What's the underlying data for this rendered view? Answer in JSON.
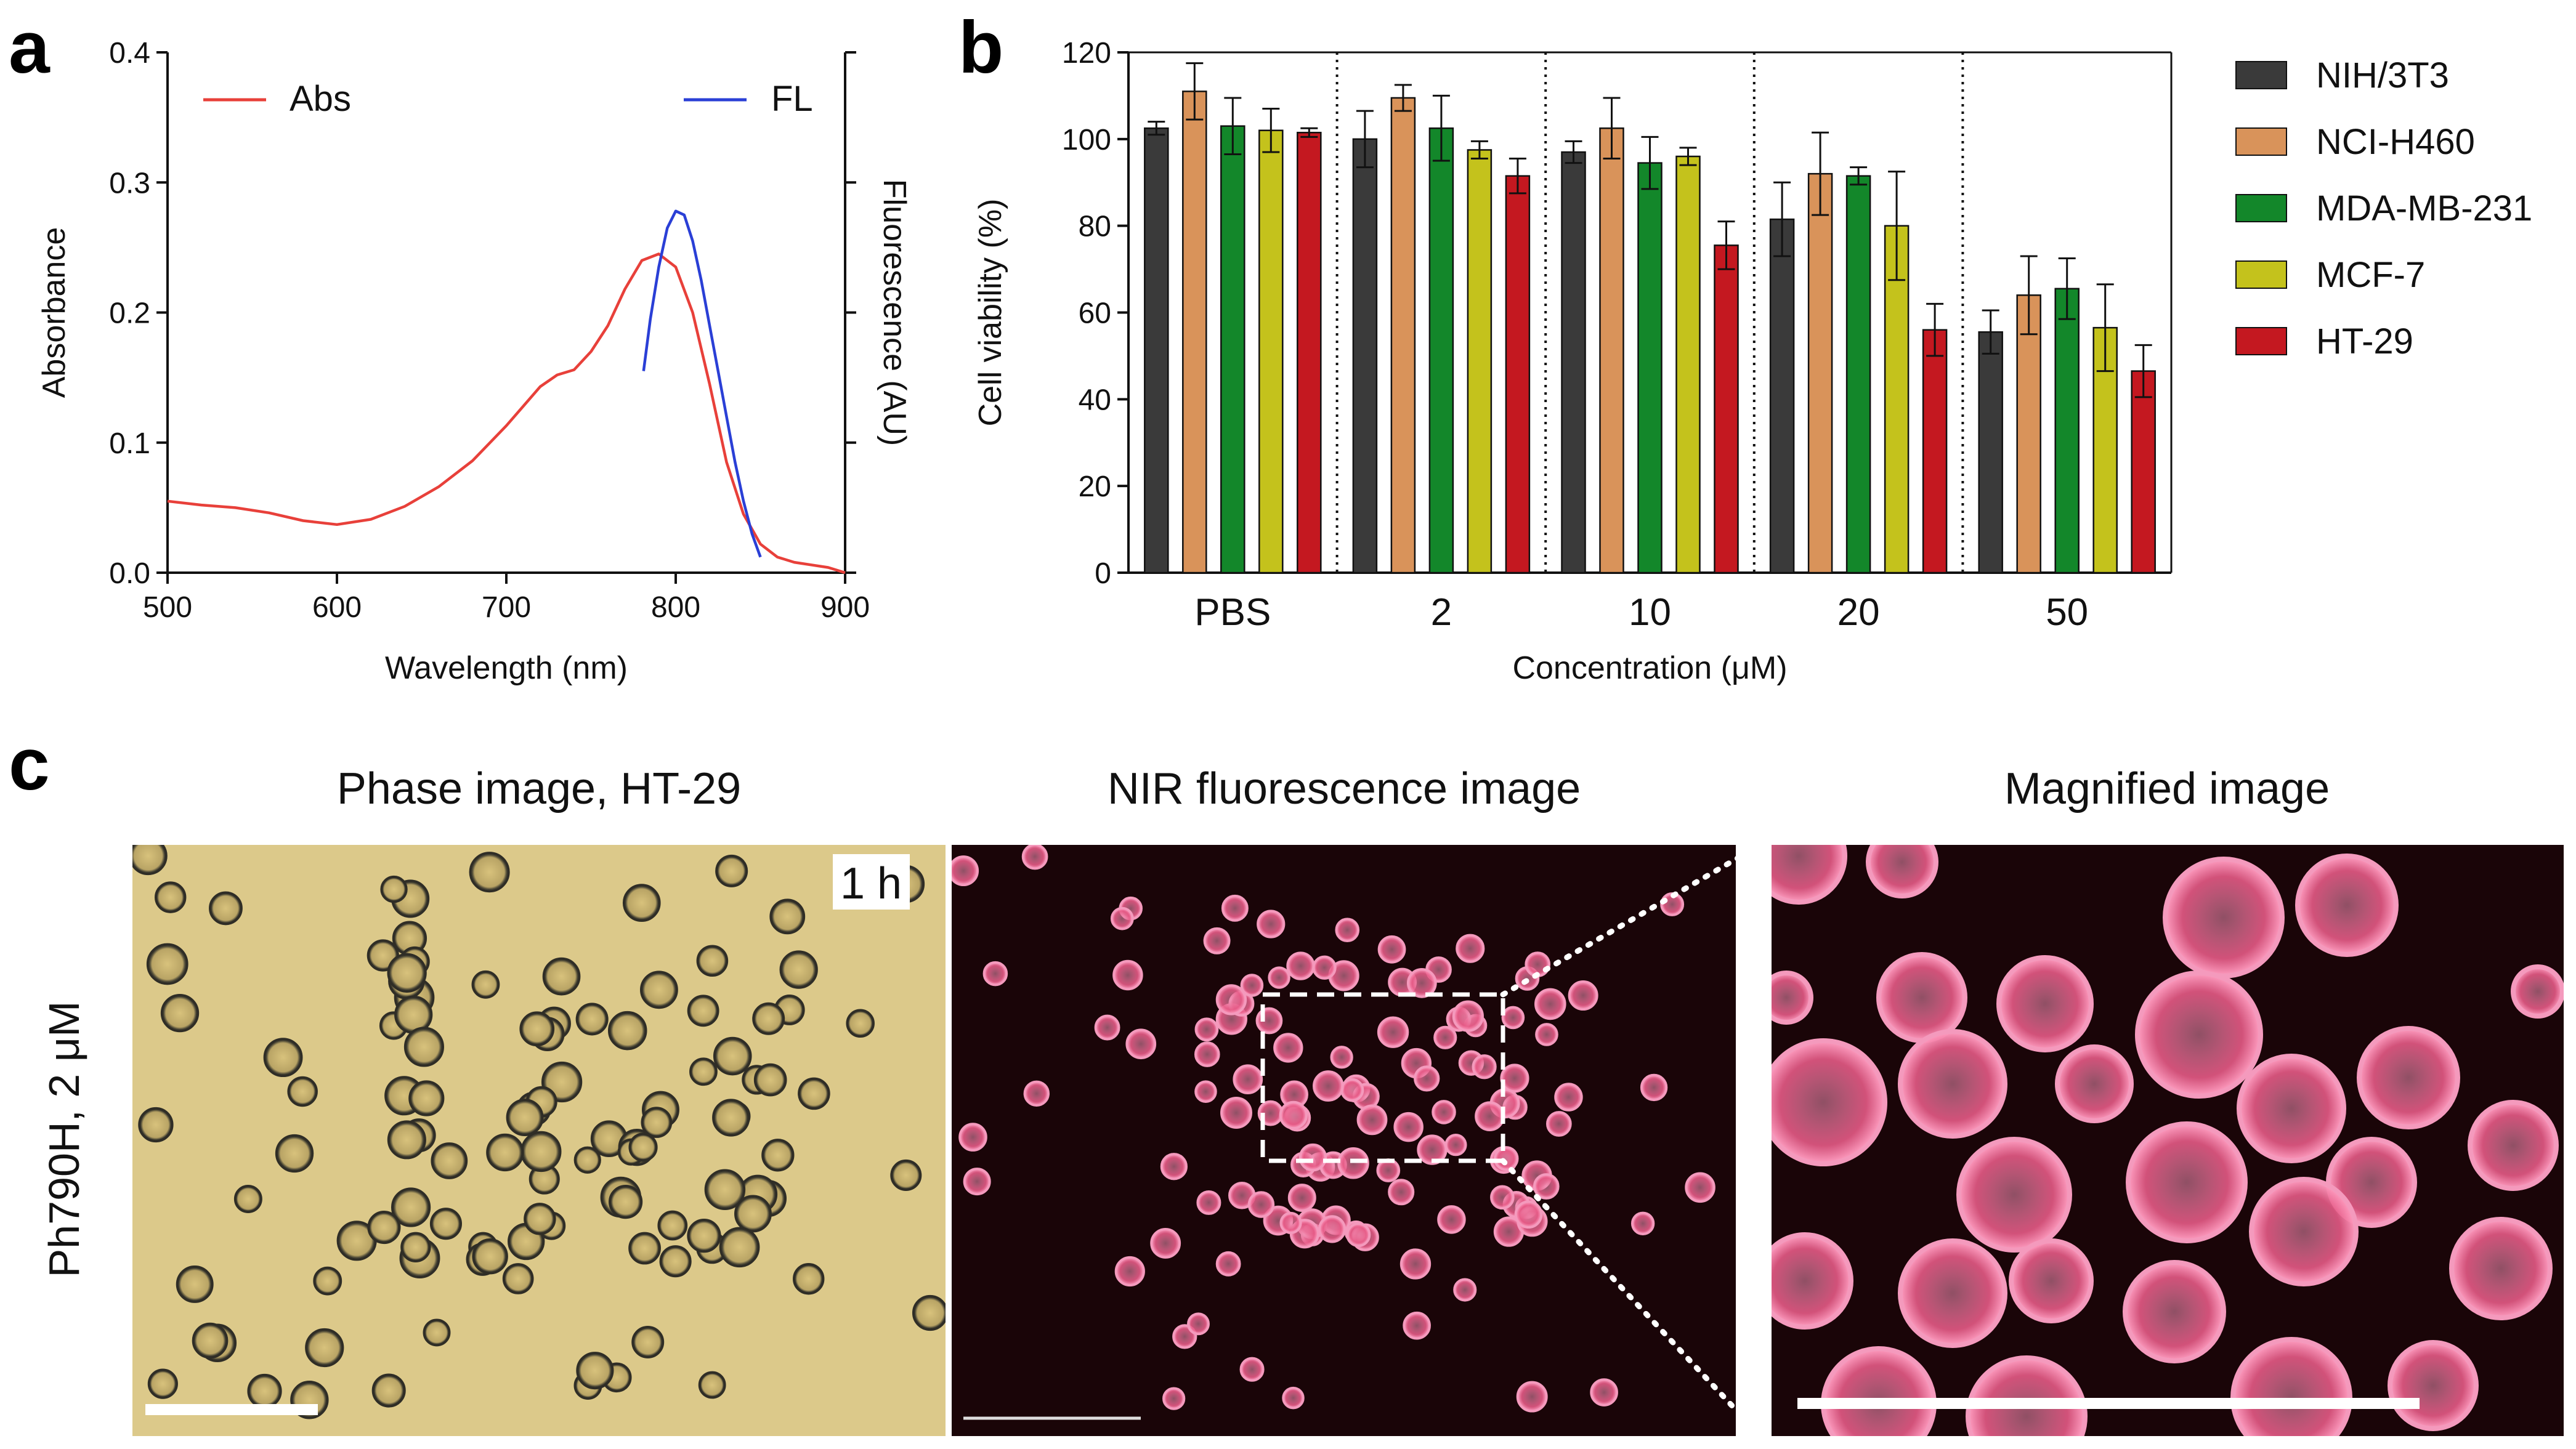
{
  "panel_labels": {
    "a": "a",
    "b": "b",
    "c": "c"
  },
  "chart_data": [
    {
      "type": "line",
      "panel": "a",
      "xlabel": "Wavelength (nm)",
      "ylabel": "Absorbance",
      "ylabel_right": "Fluorescence (AU)",
      "xlim": [
        500,
        900
      ],
      "ylim": [
        0.0,
        0.4
      ],
      "xticks": [
        "500",
        "600",
        "700",
        "800",
        "900"
      ],
      "yticks": [
        "0.0",
        "0.1",
        "0.2",
        "0.3",
        "0.4"
      ],
      "series": [
        {
          "name": "Abs",
          "color": "#e8403a",
          "x": [
            500,
            520,
            540,
            560,
            580,
            600,
            620,
            640,
            660,
            680,
            700,
            710,
            720,
            730,
            740,
            750,
            760,
            770,
            780,
            790,
            800,
            810,
            820,
            830,
            840,
            850,
            860,
            870,
            880,
            890,
            900
          ],
          "y": [
            0.055,
            0.052,
            0.05,
            0.046,
            0.04,
            0.037,
            0.041,
            0.051,
            0.066,
            0.086,
            0.113,
            0.128,
            0.143,
            0.152,
            0.156,
            0.17,
            0.19,
            0.218,
            0.24,
            0.245,
            0.235,
            0.2,
            0.145,
            0.085,
            0.045,
            0.022,
            0.012,
            0.008,
            0.006,
            0.004,
            0.0
          ]
        },
        {
          "name": "FL",
          "color": "#2a3fd6",
          "x": [
            781,
            785,
            790,
            795,
            800,
            805,
            810,
            815,
            820,
            825,
            830,
            835,
            840,
            845,
            850
          ],
          "y": [
            0.155,
            0.195,
            0.235,
            0.265,
            0.278,
            0.275,
            0.255,
            0.225,
            0.19,
            0.155,
            0.12,
            0.085,
            0.055,
            0.03,
            0.012
          ]
        }
      ]
    },
    {
      "type": "bar",
      "panel": "b",
      "xlabel": "Concentration (μM)",
      "ylabel": "Cell viability (%)",
      "ylim": [
        0,
        120
      ],
      "yticks": [
        "0",
        "20",
        "40",
        "60",
        "80",
        "100",
        "120"
      ],
      "categories": [
        "PBS",
        "2",
        "10",
        "20",
        "50"
      ],
      "series": [
        {
          "name": "NIH/3T3",
          "color": "#3a3a3a",
          "values": [
            102.5,
            100,
            97,
            81.5,
            55.5
          ],
          "errors": [
            1.5,
            6.5,
            2.5,
            8.5,
            5
          ]
        },
        {
          "name": "NCI-H460",
          "color": "#d9935a",
          "values": [
            111,
            109.5,
            102.5,
            92,
            64
          ],
          "errors": [
            6.5,
            3,
            7,
            9.5,
            9
          ]
        },
        {
          "name": "MDA-MB-231",
          "color": "#13872a",
          "values": [
            103,
            102.5,
            94.5,
            91.5,
            65.5
          ],
          "errors": [
            6.5,
            7.5,
            6,
            2,
            7
          ]
        },
        {
          "name": "MCF-7",
          "color": "#c4c21c",
          "values": [
            102,
            97.5,
            96,
            80,
            56.5
          ],
          "errors": [
            5,
            2,
            2,
            12.5,
            10
          ]
        },
        {
          "name": "HT-29",
          "color": "#c41820",
          "values": [
            101.5,
            91.5,
            75.5,
            56,
            46.5
          ],
          "errors": [
            1,
            4,
            5.5,
            6,
            6
          ]
        }
      ]
    }
  ],
  "panel_c": {
    "titles": [
      "Phase image, HT-29",
      "NIR fluorescence image",
      "Magnified image"
    ],
    "row_label": "Ph790H, 2 μM",
    "time_label": "1 h",
    "phase_bg": "#dcc98a",
    "nir_bg": "#1a0508",
    "cell_color": "#e65a86"
  }
}
